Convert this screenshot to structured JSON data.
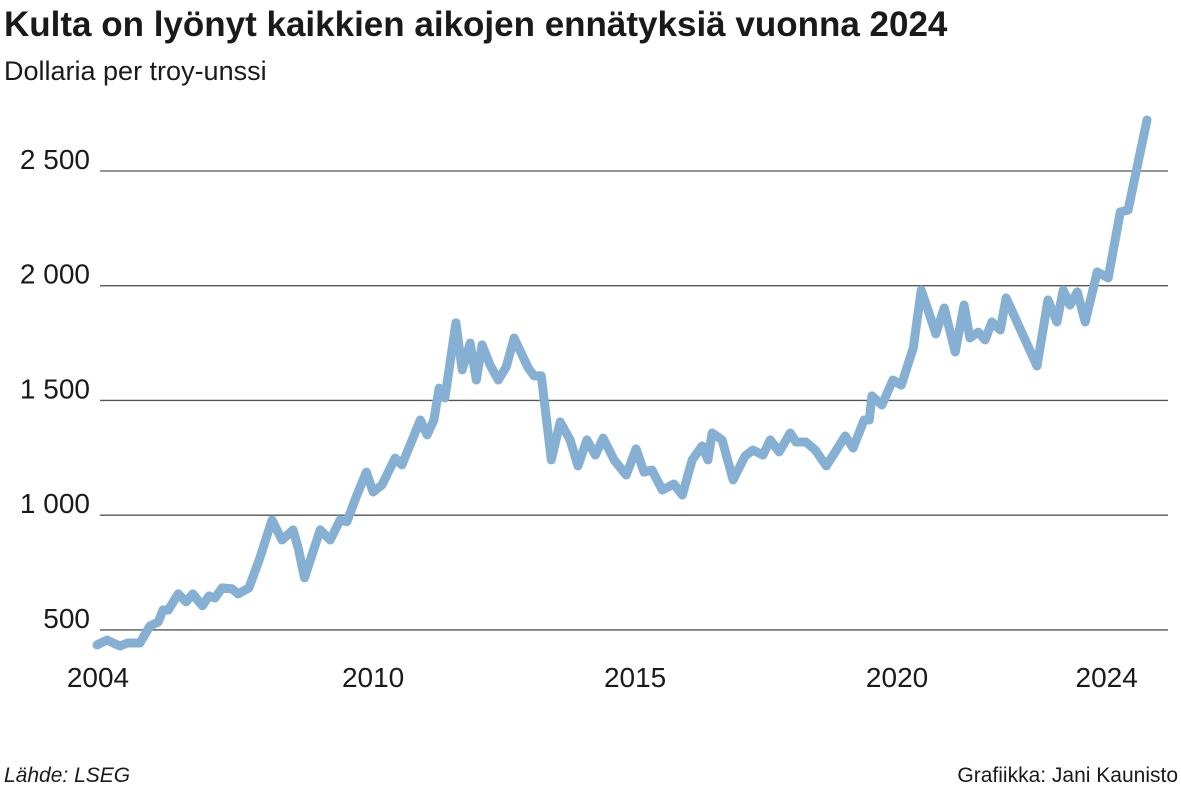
{
  "chart_data": {
    "type": "line",
    "title": "Kulta on lyönyt kaikkien aikojen ennätyksiä vuonna 2024",
    "subtitle": "Dollaria per troy-unssi",
    "source": "Lähde: LSEG",
    "credit": "Grafiikka: Jani Kaunisto",
    "x": [
      2004.73,
      2004.92,
      2005.04,
      2005.17,
      2005.31,
      2005.55,
      2005.74,
      2005.9,
      2005.99,
      2006.09,
      2006.28,
      2006.43,
      2006.56,
      2006.74,
      2006.87,
      2006.98,
      2007.12,
      2007.31,
      2007.42,
      2007.63,
      2007.84,
      2008.07,
      2008.26,
      2008.47,
      2008.57,
      2008.69,
      2008.99,
      2009.18,
      2009.37,
      2009.5,
      2009.69,
      2009.87,
      2010.0,
      2010.17,
      2010.42,
      2010.55,
      2010.9,
      2011.03,
      2011.16,
      2011.26,
      2011.37,
      2011.58,
      2011.7,
      2011.85,
      2011.97,
      2012.08,
      2012.23,
      2012.39,
      2012.54,
      2012.69,
      2012.96,
      2013.07,
      2013.21,
      2013.4,
      2013.57,
      2013.76,
      2013.91,
      2014.08,
      2014.24,
      2014.39,
      2014.6,
      2014.83,
      2015.02,
      2015.17,
      2015.32,
      2015.52,
      2015.74,
      2015.9,
      2016.09,
      2016.28,
      2016.39,
      2016.47,
      2016.66,
      2016.87,
      2017.1,
      2017.25,
      2017.44,
      2017.58,
      2017.75,
      2017.96,
      2018.07,
      2018.26,
      2018.44,
      2018.65,
      2018.82,
      2019.01,
      2019.16,
      2019.37,
      2019.47,
      2019.52,
      2019.71,
      2019.92,
      2020.08,
      2020.31,
      2020.46,
      2020.59,
      2020.74,
      2020.9,
      2021.11,
      2021.28,
      2021.39,
      2021.55,
      2021.68,
      2021.81,
      2021.97,
      2022.08,
      2022.67,
      2022.88,
      2023.05,
      2023.17,
      2023.3,
      2023.44,
      2023.59,
      2023.82,
      2024.03,
      2024.26,
      2024.41,
      2024.77
    ],
    "series": [
      {
        "name": "Kulta",
        "color": "#86b0d3",
        "values": [
          435,
          456,
          443,
          430,
          443,
          443,
          517,
          535,
          587,
          587,
          657,
          622,
          657,
          605,
          648,
          639,
          683,
          679,
          657,
          683,
          814,
          979,
          892,
          936,
          857,
          727,
          936,
          892,
          979,
          971,
          1088,
          1188,
          1101,
          1132,
          1249,
          1219,
          1415,
          1350,
          1415,
          1554,
          1511,
          1838,
          1633,
          1750,
          1589,
          1742,
          1655,
          1589,
          1646,
          1772,
          1642,
          1607,
          1607,
          1241,
          1406,
          1328,
          1215,
          1328,
          1262,
          1336,
          1241,
          1175,
          1289,
          1188,
          1197,
          1110,
          1136,
          1088,
          1241,
          1302,
          1241,
          1358,
          1328,
          1154,
          1258,
          1284,
          1262,
          1328,
          1276,
          1358,
          1319,
          1319,
          1284,
          1215,
          1276,
          1345,
          1293,
          1415,
          1415,
          1520,
          1480,
          1589,
          1567,
          1729,
          1981,
          1894,
          1790,
          1903,
          1711,
          1916,
          1772,
          1798,
          1764,
          1842,
          1807,
          1947,
          1650,
          1938,
          1842,
          1981,
          1916,
          1973,
          1842,
          2060,
          2034,
          2321,
          2330,
          2722
        ]
      }
    ],
    "xlim": [
      2004.73,
      2024.77
    ],
    "xticks": [
      2004,
      2010,
      2015,
      2020,
      2024
    ],
    "ylim": [
      430,
      2750
    ],
    "yticks": [
      500,
      {
        "value": 1000,
        "label": "1 000"
      },
      {
        "value": 1500,
        "label": "1 500"
      },
      {
        "value": 2000,
        "label": "2 000"
      },
      {
        "value": 2500,
        "label": "2 500"
      }
    ],
    "grid": true
  }
}
